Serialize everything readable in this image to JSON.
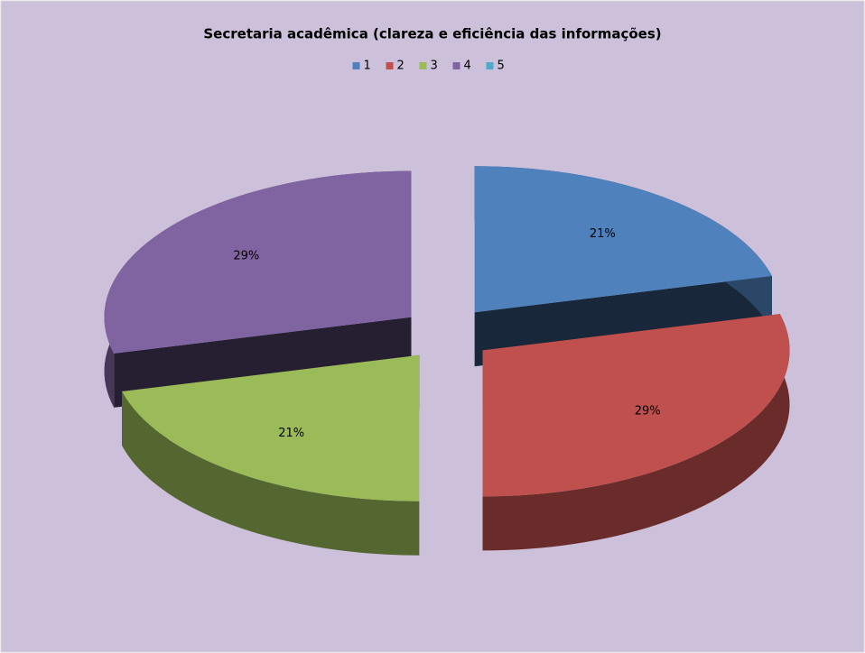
{
  "chart_data": {
    "type": "pie3d",
    "title": "Secretaria acadêmica (clareza e eficiência das informações)",
    "categories": [
      "1",
      "2",
      "3",
      "4",
      "5"
    ],
    "values": [
      21,
      29,
      21,
      29,
      0
    ],
    "value_labels": [
      "21%",
      "29%",
      "21%",
      "29%",
      null
    ],
    "colors": [
      "#4f81bd",
      "#c0504d",
      "#9bbb59",
      "#8064a2",
      "#4bacc6"
    ],
    "legend": "top"
  }
}
